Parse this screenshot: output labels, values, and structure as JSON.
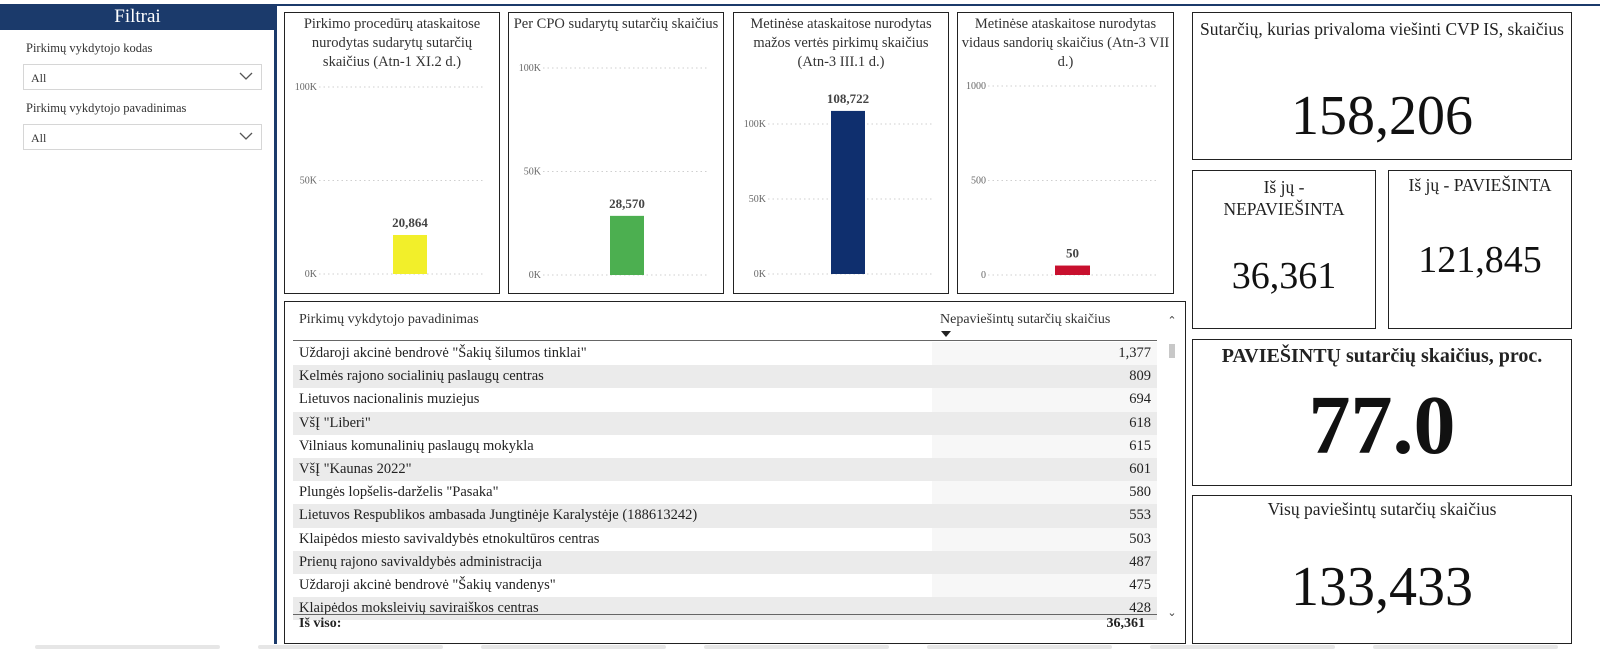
{
  "sidebar": {
    "title": "Filtrai",
    "filters": [
      {
        "label": "Pirkimų vykdytojo kodas",
        "value": "All"
      },
      {
        "label": "Pirkimų vykdytojo pavadinimas",
        "value": "All"
      }
    ]
  },
  "charts": [
    {
      "title": "Pirkimo procedūrų ataskaitose nurodytas sudarytų sutarčių skaičius (Atn-1 XI.2 d.)",
      "chart_data": {
        "type": "bar",
        "values": [
          20864
        ],
        "value_labels": [
          "20,864"
        ],
        "ylim": [
          0,
          100000
        ],
        "ticks": [
          0,
          50000,
          100000
        ],
        "tick_labels": [
          "0K",
          "50K",
          "100K"
        ],
        "color": "#f2ef2a"
      }
    },
    {
      "title": "Per CPO sudarytų sutarčių skaičius",
      "chart_data": {
        "type": "bar",
        "values": [
          28570
        ],
        "value_labels": [
          "28,570"
        ],
        "ylim": [
          0,
          100000
        ],
        "ticks": [
          0,
          50000,
          100000
        ],
        "tick_labels": [
          "0K",
          "50K",
          "100K"
        ],
        "color": "#4caf50"
      }
    },
    {
      "title": "Metinėse ataskaitose nurodytas mažos vertės pirkimų skaičius (Atn-3 III.1 d.)",
      "chart_data": {
        "type": "bar",
        "values": [
          108722
        ],
        "value_labels": [
          "108,722"
        ],
        "ylim": [
          0,
          100000
        ],
        "ticks": [
          0,
          50000,
          100000
        ],
        "tick_labels": [
          "0K",
          "50K",
          "100K"
        ],
        "color": "#0f2f6e"
      }
    },
    {
      "title": "Metinėse ataskaitose nurodytas vidaus sandorių skaičius (Atn-3 VII d.)",
      "chart_data": {
        "type": "bar",
        "values": [
          50
        ],
        "value_labels": [
          "50"
        ],
        "ylim": [
          0,
          1000
        ],
        "ticks": [
          0,
          500,
          1000
        ],
        "tick_labels": [
          "0",
          "500",
          "1000"
        ],
        "color": "#c8102e"
      }
    }
  ],
  "kpis": {
    "total_title": "Sutarčių, kurias privaloma viešinti CVP IS, skaičius",
    "total_value": "158,206",
    "unpublished_title": "Iš jų - NEPAVIEŠINTA",
    "unpublished_value": "36,361",
    "published_title": "Iš jų - PAVIEŠINTA",
    "published_value": "121,845",
    "percent_title": "PAVIEŠINTŲ sutarčių skaičius, proc.",
    "percent_value": "77.0",
    "all_published_title": "Visų paviešintų sutarčių skaičius",
    "all_published_value": "133,433"
  },
  "table": {
    "col_name": "Pirkimų vykdytojo pavadinimas",
    "col_count": "Nepaviešintų sutarčių skaičius",
    "rows": [
      {
        "name": "Uždaroji akcinė bendrovė \"Šakių šilumos tinklai\"",
        "count": "1,377"
      },
      {
        "name": "Kelmės rajono socialinių paslaugų centras",
        "count": "809"
      },
      {
        "name": "Lietuvos nacionalinis muziejus",
        "count": "694"
      },
      {
        "name": "VšĮ \"Liberi\"",
        "count": "618"
      },
      {
        "name": "Vilniaus komunalinių paslaugų mokykla",
        "count": "615"
      },
      {
        "name": "VšĮ \"Kaunas 2022\"",
        "count": "601"
      },
      {
        "name": "Plungės lopšelis-darželis \"Pasaka\"",
        "count": "580"
      },
      {
        "name": "Lietuvos Respublikos ambasada Jungtinėje Karalystėje (188613242)",
        "count": "553"
      },
      {
        "name": "Klaipėdos miesto savivaldybės etnokultūros centras",
        "count": "503"
      },
      {
        "name": "Prienų rajono savivaldybės administracija",
        "count": "487"
      },
      {
        "name": "Uždaroji akcinė bendrovė \"Šakių vandenys\"",
        "count": "475"
      },
      {
        "name": "Klaipėdos moksleivių saviraiškos centras",
        "count": "428"
      }
    ],
    "total_label": "Iš viso:",
    "total_value": "36,361"
  }
}
